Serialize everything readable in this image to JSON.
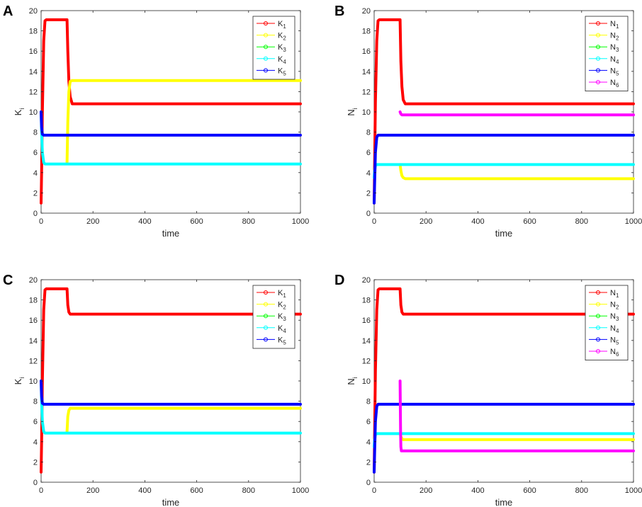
{
  "chart_data": [
    {
      "panel": "A",
      "type": "line",
      "xlabel": "time",
      "ylabel": "K",
      "ylabel_sub": "i",
      "xlim": [
        0,
        1000
      ],
      "ylim": [
        0,
        20
      ],
      "xticks": [
        0,
        200,
        400,
        600,
        800,
        1000
      ],
      "yticks": [
        0,
        2,
        4,
        6,
        8,
        10,
        12,
        14,
        16,
        18,
        20
      ],
      "series": [
        {
          "name": "K",
          "sub": "1",
          "color": "#ff0000",
          "x": [
            0,
            2,
            5,
            10,
            15,
            20,
            100,
            103,
            107,
            112,
            120,
            1000
          ],
          "y": [
            1,
            4,
            10,
            17,
            19,
            19.1,
            19.1,
            16,
            13,
            11.5,
            10.8,
            10.8
          ]
        },
        {
          "name": "K",
          "sub": "2",
          "color": "#ffff00",
          "x": [
            100,
            103,
            107,
            112,
            120,
            1000
          ],
          "y": [
            5,
            9,
            12,
            13,
            13.1,
            13.1
          ]
        },
        {
          "name": "K",
          "sub": "3",
          "color": "#00ff00",
          "x": [],
          "y": []
        },
        {
          "name": "K",
          "sub": "4",
          "color": "#00ffff",
          "x": [
            0,
            2,
            5,
            10,
            15,
            20,
            1000
          ],
          "y": [
            10,
            8,
            6,
            5,
            4.85,
            4.85,
            4.85
          ]
        },
        {
          "name": "K",
          "sub": "5",
          "color": "#0000ff",
          "x": [
            0,
            2,
            5,
            10,
            15,
            1000
          ],
          "y": [
            10,
            8.5,
            7.8,
            7.7,
            7.7,
            7.7
          ]
        }
      ]
    },
    {
      "panel": "B",
      "type": "line",
      "xlabel": "time",
      "ylabel": "N",
      "ylabel_sub": "i",
      "xlim": [
        0,
        1000
      ],
      "ylim": [
        0,
        20
      ],
      "xticks": [
        0,
        200,
        400,
        600,
        800,
        1000
      ],
      "yticks": [
        0,
        2,
        4,
        6,
        8,
        10,
        12,
        14,
        16,
        18,
        20
      ],
      "series": [
        {
          "name": "N",
          "sub": "1",
          "color": "#ff0000",
          "x": [
            0,
            2,
            5,
            10,
            15,
            20,
            100,
            103,
            107,
            112,
            120,
            1000
          ],
          "y": [
            1,
            5,
            11,
            17,
            19,
            19.1,
            19.1,
            15,
            12.5,
            11.2,
            10.8,
            10.8
          ]
        },
        {
          "name": "N",
          "sub": "2",
          "color": "#ffff00",
          "x": [
            100,
            103,
            107,
            112,
            120,
            1000
          ],
          "y": [
            4.8,
            4.2,
            3.7,
            3.5,
            3.4,
            3.4
          ]
        },
        {
          "name": "N",
          "sub": "3",
          "color": "#00ff00",
          "x": [],
          "y": []
        },
        {
          "name": "N",
          "sub": "4",
          "color": "#00ffff",
          "x": [
            0,
            2,
            5,
            10,
            1000
          ],
          "y": [
            3.5,
            4.2,
            4.7,
            4.8,
            4.8
          ]
        },
        {
          "name": "N",
          "sub": "5",
          "color": "#0000ff",
          "x": [
            0,
            2,
            5,
            10,
            15,
            1000
          ],
          "y": [
            1,
            3,
            6,
            7.5,
            7.7,
            7.7
          ]
        },
        {
          "name": "N",
          "sub": "6",
          "color": "#ff00ff",
          "x": [
            100,
            103,
            107,
            112,
            1000
          ],
          "y": [
            10,
            9.8,
            9.7,
            9.7,
            9.7
          ]
        }
      ]
    },
    {
      "panel": "C",
      "type": "line",
      "xlabel": "time",
      "ylabel": "K",
      "ylabel_sub": "i",
      "xlim": [
        0,
        1000
      ],
      "ylim": [
        0,
        20
      ],
      "xticks": [
        0,
        200,
        400,
        600,
        800,
        1000
      ],
      "yticks": [
        0,
        2,
        4,
        6,
        8,
        10,
        12,
        14,
        16,
        18,
        20
      ],
      "series": [
        {
          "name": "K",
          "sub": "1",
          "color": "#ff0000",
          "x": [
            0,
            2,
            5,
            10,
            15,
            20,
            100,
            103,
            107,
            112,
            1000
          ],
          "y": [
            1,
            4,
            10,
            17,
            19,
            19.1,
            19.1,
            17.5,
            16.8,
            16.6,
            16.6
          ]
        },
        {
          "name": "K",
          "sub": "2",
          "color": "#ffff00",
          "x": [
            100,
            103,
            107,
            112,
            1000
          ],
          "y": [
            5,
            6.5,
            7.1,
            7.3,
            7.3
          ]
        },
        {
          "name": "K",
          "sub": "3",
          "color": "#00ff00",
          "x": [],
          "y": []
        },
        {
          "name": "K",
          "sub": "4",
          "color": "#00ffff",
          "x": [
            0,
            2,
            5,
            10,
            15,
            20,
            1000
          ],
          "y": [
            10,
            8,
            6,
            5,
            4.85,
            4.85,
            4.85
          ]
        },
        {
          "name": "K",
          "sub": "5",
          "color": "#0000ff",
          "x": [
            0,
            2,
            5,
            10,
            15,
            1000
          ],
          "y": [
            10,
            8.5,
            7.8,
            7.7,
            7.7,
            7.7
          ]
        }
      ]
    },
    {
      "panel": "D",
      "type": "line",
      "xlabel": "time",
      "ylabel": "N",
      "ylabel_sub": "i",
      "xlim": [
        0,
        1000
      ],
      "ylim": [
        0,
        20
      ],
      "xticks": [
        0,
        200,
        400,
        600,
        800,
        1000
      ],
      "yticks": [
        0,
        2,
        4,
        6,
        8,
        10,
        12,
        14,
        16,
        18,
        20
      ],
      "series": [
        {
          "name": "N",
          "sub": "1",
          "color": "#ff0000",
          "x": [
            0,
            2,
            5,
            10,
            15,
            20,
            100,
            103,
            107,
            112,
            1000
          ],
          "y": [
            1,
            5,
            11,
            17,
            19,
            19.1,
            19.1,
            17.5,
            16.8,
            16.6,
            16.6
          ]
        },
        {
          "name": "N",
          "sub": "2",
          "color": "#ffff00",
          "x": [
            100,
            103,
            107,
            112,
            1000
          ],
          "y": [
            4.8,
            4.5,
            4.3,
            4.2,
            4.2
          ]
        },
        {
          "name": "N",
          "sub": "3",
          "color": "#00ff00",
          "x": [],
          "y": []
        },
        {
          "name": "N",
          "sub": "4",
          "color": "#00ffff",
          "x": [
            0,
            2,
            5,
            10,
            1000
          ],
          "y": [
            3.5,
            4.2,
            4.7,
            4.8,
            4.8
          ]
        },
        {
          "name": "N",
          "sub": "5",
          "color": "#0000ff",
          "x": [
            0,
            2,
            5,
            10,
            15,
            1000
          ],
          "y": [
            1,
            3,
            6,
            7.5,
            7.7,
            7.7
          ]
        },
        {
          "name": "N",
          "sub": "6",
          "color": "#ff00ff",
          "x": [
            100,
            101,
            102,
            103,
            105,
            1000
          ],
          "y": [
            10,
            7,
            5,
            3.5,
            3.1,
            3.1
          ]
        }
      ]
    }
  ]
}
